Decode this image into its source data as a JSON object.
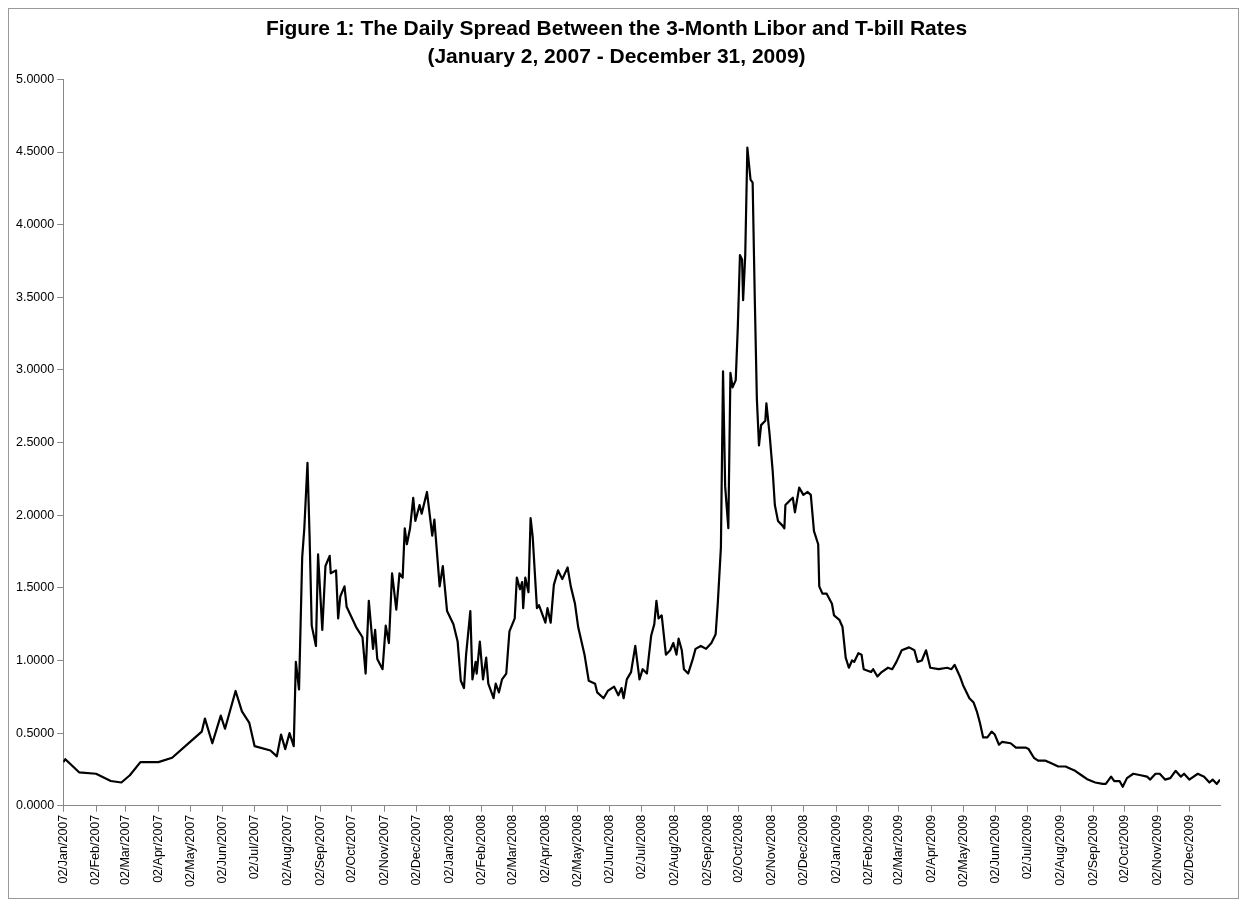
{
  "chart_data": {
    "type": "line",
    "title": "Figure 1: The Daily Spread Between the 3-Month Libor and T-bill Rates",
    "subtitle": "(January 2, 2007 - December 31, 2009)",
    "x": [
      "2007-01-02",
      "2007-01-04",
      "2007-01-17",
      "2007-02-02",
      "2007-02-16",
      "2007-02-26",
      "2007-03-06",
      "2007-03-16",
      "2007-04-02",
      "2007-04-15",
      "2007-05-02",
      "2007-05-13",
      "2007-05-16",
      "2007-05-23",
      "2007-05-31",
      "2007-06-04",
      "2007-06-14",
      "2007-06-20",
      "2007-06-27",
      "2007-07-02",
      "2007-07-17",
      "2007-07-23",
      "2007-07-27",
      "2007-07-31",
      "2007-08-04",
      "2007-08-08",
      "2007-08-10",
      "2007-08-13",
      "2007-08-16",
      "2007-08-18",
      "2007-08-21",
      "2007-08-23",
      "2007-08-25",
      "2007-08-29",
      "2007-08-31",
      "2007-09-04",
      "2007-09-07",
      "2007-09-11",
      "2007-09-12",
      "2007-09-17",
      "2007-09-19",
      "2007-09-21",
      "2007-09-25",
      "2007-09-27",
      "2007-10-06",
      "2007-10-12",
      "2007-10-15",
      "2007-10-18",
      "2007-10-22",
      "2007-10-24",
      "2007-10-26",
      "2007-10-31",
      "2007-11-03",
      "2007-11-06",
      "2007-11-09",
      "2007-11-13",
      "2007-11-16",
      "2007-11-19",
      "2007-11-21",
      "2007-11-23",
      "2007-11-26",
      "2007-11-29",
      "2007-12-01",
      "2007-12-05",
      "2007-12-07",
      "2007-12-12",
      "2007-12-17",
      "2007-12-19",
      "2007-12-24",
      "2007-12-27",
      "2007-12-31",
      "2008-01-06",
      "2008-01-10",
      "2008-01-13",
      "2008-01-16",
      "2008-01-18",
      "2008-01-22",
      "2008-01-24",
      "2008-01-27",
      "2008-01-28",
      "2008-01-31",
      "2008-02-03",
      "2008-02-06",
      "2008-02-08",
      "2008-02-13",
      "2008-02-15",
      "2008-02-18",
      "2008-02-21",
      "2008-02-25",
      "2008-02-28",
      "2008-03-04",
      "2008-03-06",
      "2008-03-09",
      "2008-03-11",
      "2008-03-12",
      "2008-03-14",
      "2008-03-17",
      "2008-03-19",
      "2008-03-21",
      "2008-03-25",
      "2008-03-27",
      "2008-04-02",
      "2008-04-04",
      "2008-04-07",
      "2008-04-10",
      "2008-04-14",
      "2008-04-18",
      "2008-04-23",
      "2008-04-26",
      "2008-04-30",
      "2008-05-03",
      "2008-05-09",
      "2008-05-13",
      "2008-05-19",
      "2008-05-21",
      "2008-05-27",
      "2008-05-31",
      "2008-06-06",
      "2008-06-10",
      "2008-06-13",
      "2008-06-15",
      "2008-06-18",
      "2008-06-22",
      "2008-06-26",
      "2008-06-30",
      "2008-07-03",
      "2008-07-07",
      "2008-07-11",
      "2008-07-14",
      "2008-07-16",
      "2008-07-18",
      "2008-07-21",
      "2008-07-25",
      "2008-07-29",
      "2008-08-01",
      "2008-08-04",
      "2008-08-06",
      "2008-08-09",
      "2008-08-11",
      "2008-08-15",
      "2008-08-19",
      "2008-08-22",
      "2008-08-27",
      "2008-09-01",
      "2008-09-06",
      "2008-09-10",
      "2008-09-12",
      "2008-09-15",
      "2008-09-17",
      "2008-09-19",
      "2008-09-22",
      "2008-09-24",
      "2008-09-26",
      "2008-09-29",
      "2008-10-01",
      "2008-10-03",
      "2008-10-05",
      "2008-10-06",
      "2008-10-08",
      "2008-10-10",
      "2008-10-13",
      "2008-10-15",
      "2008-10-17",
      "2008-10-19",
      "2008-10-21",
      "2008-10-23",
      "2008-10-27",
      "2008-10-28",
      "2008-10-31",
      "2008-11-03",
      "2008-11-05",
      "2008-11-08",
      "2008-11-12",
      "2008-11-14",
      "2008-11-15",
      "2008-11-19",
      "2008-11-22",
      "2008-11-24",
      "2008-11-28",
      "2008-12-02",
      "2008-12-06",
      "2008-12-09",
      "2008-12-12",
      "2008-12-16",
      "2008-12-17",
      "2008-12-20",
      "2008-12-24",
      "2008-12-29",
      "2008-12-31",
      "2009-01-05",
      "2009-01-08",
      "2009-01-11",
      "2009-01-14",
      "2009-01-17",
      "2009-01-19",
      "2009-01-23",
      "2009-01-26",
      "2009-01-28",
      "2009-02-04",
      "2009-02-06",
      "2009-02-10",
      "2009-02-14",
      "2009-02-20",
      "2009-02-24",
      "2009-02-28",
      "2009-03-05",
      "2009-03-12",
      "2009-03-17",
      "2009-03-20",
      "2009-03-24",
      "2009-03-28",
      "2009-04-01",
      "2009-04-09",
      "2009-04-17",
      "2009-04-21",
      "2009-04-24",
      "2009-04-29",
      "2009-05-02",
      "2009-05-08",
      "2009-05-12",
      "2009-05-15",
      "2009-05-18",
      "2009-05-21",
      "2009-05-25",
      "2009-05-29",
      "2009-06-01",
      "2009-06-05",
      "2009-06-08",
      "2009-06-16",
      "2009-06-21",
      "2009-06-30",
      "2009-07-03",
      "2009-07-08",
      "2009-07-12",
      "2009-07-19",
      "2009-07-25",
      "2009-07-31",
      "2009-08-07",
      "2009-08-10",
      "2009-08-16",
      "2009-08-22",
      "2009-08-28",
      "2009-09-04",
      "2009-09-11",
      "2009-09-14",
      "2009-09-19",
      "2009-09-22",
      "2009-09-27",
      "2009-09-30",
      "2009-10-04",
      "2009-10-10",
      "2009-10-17",
      "2009-10-23",
      "2009-10-26",
      "2009-10-31",
      "2009-11-04",
      "2009-11-09",
      "2009-11-14",
      "2009-11-19",
      "2009-11-24",
      "2009-11-27",
      "2009-12-02",
      "2009-12-10",
      "2009-12-16",
      "2009-12-21",
      "2009-12-24",
      "2009-12-28",
      "2009-12-31"
    ],
    "series": [
      {
        "color": "#000000",
        "values": [
          0.3,
          0.32,
          0.23,
          0.22,
          0.17,
          0.16,
          0.21,
          0.3,
          0.3,
          0.33,
          0.44,
          0.51,
          0.6,
          0.43,
          0.62,
          0.53,
          0.79,
          0.65,
          0.57,
          0.41,
          0.38,
          0.34,
          0.49,
          0.39,
          0.5,
          0.41,
          0.99,
          0.8,
          1.71,
          1.91,
          2.36,
          1.85,
          1.24,
          1.1,
          1.73,
          1.21,
          1.65,
          1.72,
          1.6,
          1.62,
          1.29,
          1.44,
          1.51,
          1.37,
          1.23,
          1.16,
          0.91,
          1.41,
          1.08,
          1.21,
          1.01,
          0.94,
          1.24,
          1.12,
          1.6,
          1.35,
          1.6,
          1.57,
          1.91,
          1.8,
          1.91,
          2.12,
          1.96,
          2.07,
          2.01,
          2.16,
          1.86,
          1.97,
          1.51,
          1.65,
          1.34,
          1.25,
          1.13,
          0.86,
          0.81,
          1.04,
          1.34,
          0.87,
          0.99,
          0.91,
          1.13,
          0.87,
          1.02,
          0.84,
          0.74,
          0.84,
          0.78,
          0.87,
          0.91,
          1.2,
          1.29,
          1.57,
          1.49,
          1.54,
          1.36,
          1.57,
          1.47,
          1.98,
          1.85,
          1.36,
          1.38,
          1.26,
          1.36,
          1.26,
          1.52,
          1.62,
          1.56,
          1.64,
          1.51,
          1.39,
          1.23,
          1.04,
          0.86,
          0.84,
          0.78,
          0.74,
          0.79,
          0.82,
          0.76,
          0.81,
          0.74,
          0.87,
          0.92,
          1.1,
          0.87,
          0.94,
          0.91,
          1.17,
          1.25,
          1.41,
          1.29,
          1.31,
          1.04,
          1.07,
          1.12,
          1.04,
          1.15,
          1.07,
          0.94,
          0.91,
          1.0,
          1.08,
          1.1,
          1.08,
          1.12,
          1.18,
          1.39,
          1.78,
          2.99,
          2.2,
          1.91,
          2.98,
          2.88,
          2.93,
          3.3,
          3.79,
          3.76,
          3.48,
          3.79,
          4.53,
          4.31,
          4.29,
          3.5,
          2.8,
          2.48,
          2.62,
          2.65,
          2.77,
          2.56,
          2.3,
          2.07,
          1.96,
          1.93,
          1.91,
          2.07,
          2.1,
          2.12,
          2.02,
          2.19,
          2.14,
          2.16,
          2.14,
          1.89,
          1.8,
          1.51,
          1.46,
          1.46,
          1.39,
          1.31,
          1.28,
          1.23,
          1.02,
          0.95,
          1.0,
          0.99,
          1.05,
          1.04,
          0.94,
          0.92,
          0.94,
          0.89,
          0.92,
          0.95,
          0.94,
          0.99,
          1.07,
          1.09,
          1.07,
          0.99,
          1.0,
          1.07,
          0.95,
          0.94,
          0.95,
          0.94,
          0.97,
          0.89,
          0.83,
          0.74,
          0.71,
          0.65,
          0.57,
          0.47,
          0.47,
          0.51,
          0.49,
          0.42,
          0.44,
          0.43,
          0.4,
          0.4,
          0.39,
          0.33,
          0.31,
          0.31,
          0.29,
          0.27,
          0.27,
          0.26,
          0.24,
          0.21,
          0.18,
          0.16,
          0.15,
          0.15,
          0.2,
          0.17,
          0.17,
          0.13,
          0.19,
          0.22,
          0.21,
          0.2,
          0.18,
          0.22,
          0.22,
          0.18,
          0.19,
          0.24,
          0.2,
          0.22,
          0.18,
          0.22,
          0.2,
          0.16,
          0.18,
          0.15,
          0.18
        ]
      }
    ],
    "xlim": [
      "2007-01-02",
      "2009-12-31"
    ],
    "xticks": [
      {
        "value": "2007-01-02",
        "label": "02/Jan/2007"
      },
      {
        "value": "2007-02-02",
        "label": "02/Feb/2007"
      },
      {
        "value": "2007-03-02",
        "label": "02/Mar/2007"
      },
      {
        "value": "2007-04-02",
        "label": "02/Apr/2007"
      },
      {
        "value": "2007-05-02",
        "label": "02/May/2007"
      },
      {
        "value": "2007-06-02",
        "label": "02/Jun/2007"
      },
      {
        "value": "2007-07-02",
        "label": "02/Jul/2007"
      },
      {
        "value": "2007-08-02",
        "label": "02/Aug/2007"
      },
      {
        "value": "2007-09-02",
        "label": "02/Sep/2007"
      },
      {
        "value": "2007-10-02",
        "label": "02/Oct/2007"
      },
      {
        "value": "2007-11-02",
        "label": "02/Nov/2007"
      },
      {
        "value": "2007-12-02",
        "label": "02/Dec/2007"
      },
      {
        "value": "2008-01-02",
        "label": "02/Jan/2008"
      },
      {
        "value": "2008-02-02",
        "label": "02/Feb/2008"
      },
      {
        "value": "2008-03-02",
        "label": "02/Mar/2008"
      },
      {
        "value": "2008-04-02",
        "label": "02/Apr/2008"
      },
      {
        "value": "2008-05-02",
        "label": "02/May/2008"
      },
      {
        "value": "2008-06-02",
        "label": "02/Jun/2008"
      },
      {
        "value": "2008-07-02",
        "label": "02/Jul/2008"
      },
      {
        "value": "2008-08-02",
        "label": "02/Aug/2008"
      },
      {
        "value": "2008-09-02",
        "label": "02/Sep/2008"
      },
      {
        "value": "2008-10-02",
        "label": "02/Oct/2008"
      },
      {
        "value": "2008-11-02",
        "label": "02/Nov/2008"
      },
      {
        "value": "2008-12-02",
        "label": "02/Dec/2008"
      },
      {
        "value": "2009-01-02",
        "label": "02/Jan/2009"
      },
      {
        "value": "2009-02-02",
        "label": "02/Feb/2009"
      },
      {
        "value": "2009-03-02",
        "label": "02/Mar/2009"
      },
      {
        "value": "2009-04-02",
        "label": "02/Apr/2009"
      },
      {
        "value": "2009-05-02",
        "label": "02/May/2009"
      },
      {
        "value": "2009-06-02",
        "label": "02/Jun/2009"
      },
      {
        "value": "2009-07-02",
        "label": "02/Jul/2009"
      },
      {
        "value": "2009-08-02",
        "label": "02/Aug/2009"
      },
      {
        "value": "2009-09-02",
        "label": "02/Sep/2009"
      },
      {
        "value": "2009-10-02",
        "label": "02/Oct/2009"
      },
      {
        "value": "2009-11-02",
        "label": "02/Nov/2009"
      },
      {
        "value": "2009-12-02",
        "label": "02/Dec/2009"
      }
    ],
    "ylim": [
      0,
      5
    ],
    "yticks": [
      {
        "value": 0,
        "label": "0.0000"
      },
      {
        "value": 0.5,
        "label": "0.5000"
      },
      {
        "value": 1,
        "label": "1.0000"
      },
      {
        "value": 1.5,
        "label": "1.5000"
      },
      {
        "value": 2,
        "label": "2.0000"
      },
      {
        "value": 2.5,
        "label": "2.5000"
      },
      {
        "value": 3,
        "label": "3.0000"
      },
      {
        "value": 3.5,
        "label": "3.5000"
      },
      {
        "value": 4,
        "label": "4.0000"
      },
      {
        "value": 4.5,
        "label": "4.5000"
      },
      {
        "value": 5,
        "label": "5.0000"
      }
    ],
    "grid": false,
    "legend": false,
    "marker": "none",
    "line_style": "solid"
  }
}
